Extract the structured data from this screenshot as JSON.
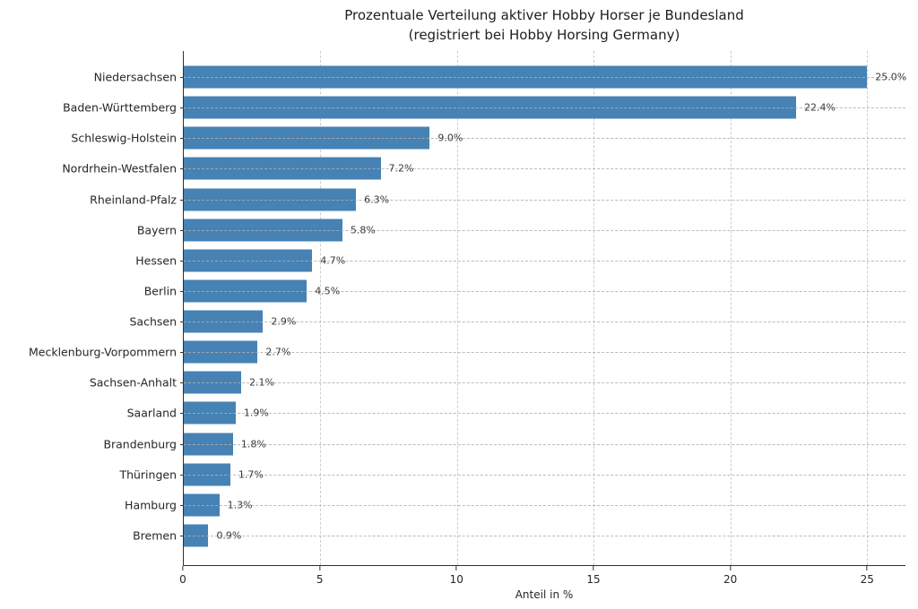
{
  "title": {
    "line1": "Prozentuale Verteilung aktiver Hobby Horser je Bundesland",
    "line2": "(registriert bei Hobby Horsing Germany)"
  },
  "chart_data": {
    "type": "bar",
    "orientation": "horizontal",
    "title": "Prozentuale Verteilung aktiver Hobby Horser je Bundesland (registriert bei Hobby Horsing Germany)",
    "categories": [
      "Niedersachsen",
      "Baden-Württemberg",
      "Schleswig-Holstein",
      "Nordrhein-Westfalen",
      "Rheinland-Pfalz",
      "Bayern",
      "Hessen",
      "Berlin",
      "Sachsen",
      "Mecklenburg-Vorpommern",
      "Sachsen-Anhalt",
      "Saarland",
      "Brandenburg",
      "Thüringen",
      "Hamburg",
      "Bremen"
    ],
    "values": [
      25.0,
      22.4,
      9.0,
      7.2,
      6.3,
      5.8,
      4.7,
      4.5,
      2.9,
      2.7,
      2.1,
      1.9,
      1.8,
      1.7,
      1.3,
      0.9
    ],
    "value_labels": [
      "25.0%",
      "22.4%",
      "9.0%",
      "7.2%",
      "6.3%",
      "5.8%",
      "4.7%",
      "4.5%",
      "2.9%",
      "2.7%",
      "2.1%",
      "1.9%",
      "1.8%",
      "1.7%",
      "1.3%",
      "0.9%"
    ],
    "xlabel": "Anteil in %",
    "x_ticks": [
      "0",
      "5",
      "10",
      "15",
      "20",
      "25"
    ],
    "xlim": [
      0,
      26.4
    ],
    "grid": {
      "style": "dashed",
      "x_grid": true,
      "y_grid": true
    },
    "legend": null,
    "colors": {
      "bar": "#4682b4",
      "axis": "#2f2f2f",
      "gridline": "#cdcdcd",
      "value_label": "#3a3a3a",
      "tick_label": "#262626",
      "title": "#202020",
      "background": "#ffffff"
    }
  }
}
